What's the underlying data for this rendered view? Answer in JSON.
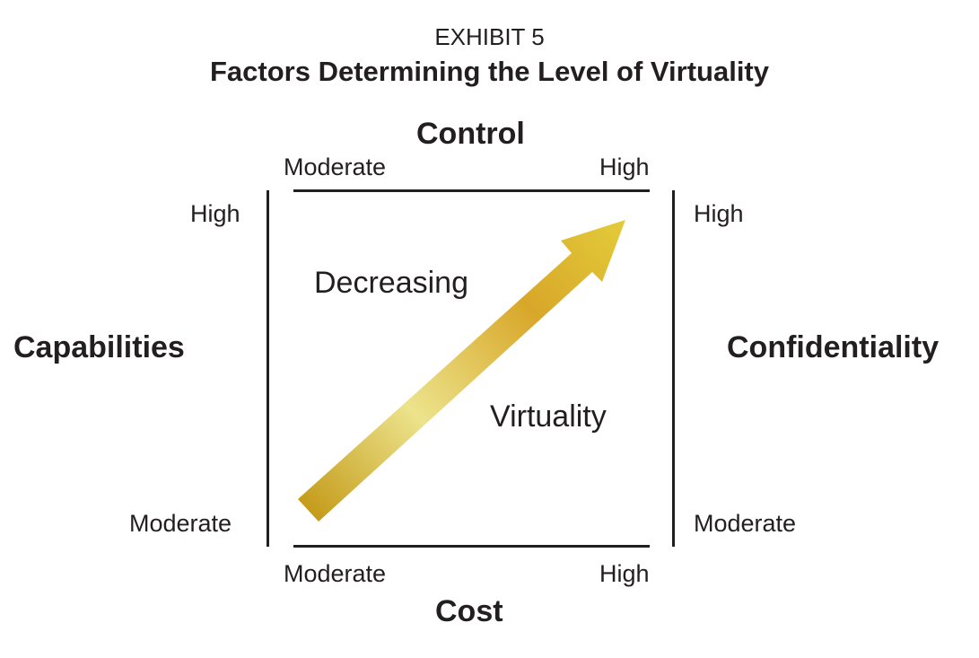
{
  "header": {
    "exhibit": "EXHIBIT 5",
    "title": "Factors Determining the Level of Virtuality"
  },
  "axes": {
    "top": {
      "title": "Control",
      "low": "Moderate",
      "high": "High"
    },
    "bottom": {
      "title": "Cost",
      "low": "Moderate",
      "high": "High"
    },
    "left": {
      "title": "Capabilities",
      "low": "Moderate",
      "high": "High"
    },
    "right": {
      "title": "Confidentiality",
      "low": "Moderate",
      "high": "High"
    }
  },
  "center": {
    "line1": "Decreasing",
    "line2": "Virtuality"
  },
  "colors": {
    "text": "#231f20",
    "arrow_dark": "#c49a18",
    "arrow_light": "#ece38c",
    "arrow_mid": "#d8a729",
    "arrow_tip": "#e3cc3a"
  }
}
